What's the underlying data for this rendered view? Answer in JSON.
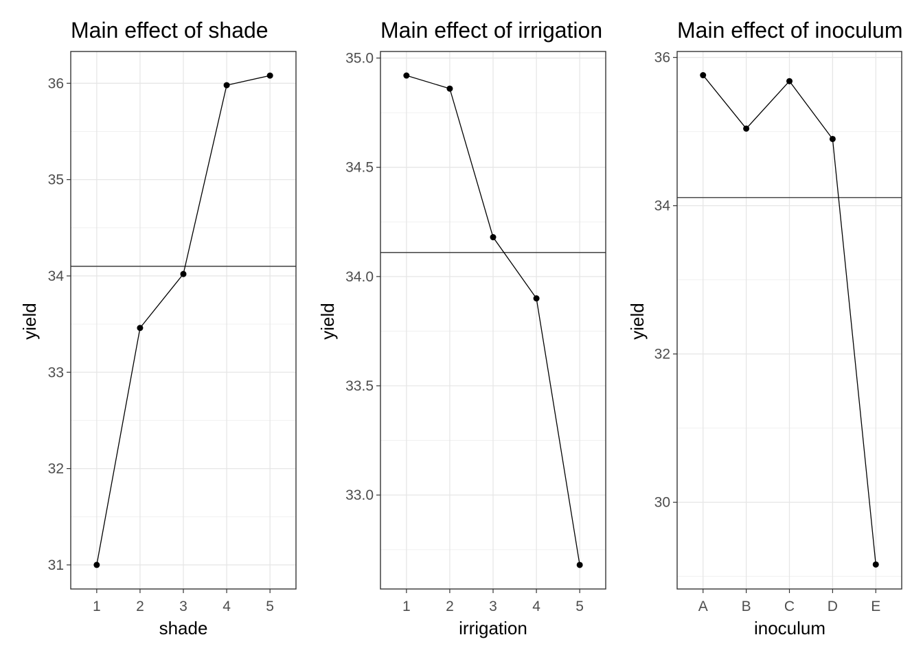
{
  "chart_data": [
    {
      "type": "line",
      "title": "Main effect of shade",
      "xlabel": "shade",
      "ylabel": "yield",
      "categories": [
        "1",
        "2",
        "3",
        "4",
        "5"
      ],
      "values": [
        31.0,
        33.46,
        34.02,
        35.98,
        36.08
      ],
      "hline": 34.1,
      "ylim": [
        30.75,
        36.33
      ],
      "yticks": [
        31,
        32,
        33,
        34,
        35,
        36
      ],
      "ytick_labels": [
        "31",
        "32",
        "33",
        "34",
        "35",
        "36"
      ],
      "grid": true,
      "point_color": "#000000",
      "line_color": "#000000"
    },
    {
      "type": "line",
      "title": "Main effect of irrigation",
      "xlabel": "irrigation",
      "ylabel": "yield",
      "categories": [
        "1",
        "2",
        "3",
        "4",
        "5"
      ],
      "values": [
        34.92,
        34.86,
        34.18,
        33.9,
        32.68
      ],
      "hline": 34.11,
      "ylim": [
        32.57,
        35.03
      ],
      "yticks": [
        33.0,
        33.5,
        34.0,
        34.5,
        35.0
      ],
      "ytick_labels": [
        "33.0",
        "33.5",
        "34.0",
        "34.5",
        "35.0"
      ],
      "grid": true,
      "point_color": "#000000",
      "line_color": "#000000"
    },
    {
      "type": "line",
      "title": "Main effect of inoculum",
      "xlabel": "inoculum",
      "ylabel": "yield",
      "categories": [
        "A",
        "B",
        "C",
        "D",
        "E"
      ],
      "values": [
        35.76,
        35.04,
        35.68,
        34.9,
        29.16
      ],
      "hline": 34.11,
      "ylim": [
        28.83,
        36.08
      ],
      "yticks": [
        30,
        32,
        34,
        36
      ],
      "ytick_labels": [
        "30",
        "32",
        "34",
        "36"
      ],
      "grid": true,
      "point_color": "#000000",
      "line_color": "#000000"
    }
  ]
}
